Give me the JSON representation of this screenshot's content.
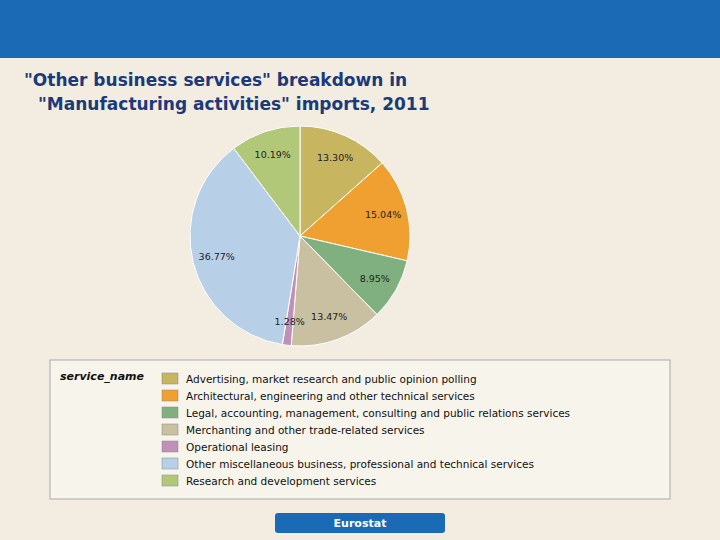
{
  "chart_data": {
    "type": "pie",
    "title": "\"Other business services\" breakdown in",
    "subtitle": "\"Manufacturing activities\" imports, 2011",
    "categories": [
      "Advertising, market research and public opinion polling",
      "Architectural, engineering and other technical services",
      "Legal, accounting, management, consulting and public relations services",
      "Merchanting and other trade-related services",
      "Operational leasing",
      "Other miscellaneous business, professional and technical services",
      "Research and development services"
    ],
    "values": [
      13.3,
      15.04,
      8.95,
      13.47,
      1.28,
      36.77,
      10.19
    ],
    "value_labels": [
      "13.30%",
      "15.04%",
      "8.95%",
      "13.47%",
      "1.28%",
      "36.77%",
      "10.19%"
    ],
    "colors": [
      "#c8b560",
      "#f0a030",
      "#80b080",
      "#c8c0a0",
      "#c090b8",
      "#b8cfe8",
      "#b0c878"
    ],
    "data_labels": true,
    "legend": "bottom",
    "legend_title": "service_name",
    "annotations": [
      "Eurostat"
    ]
  }
}
